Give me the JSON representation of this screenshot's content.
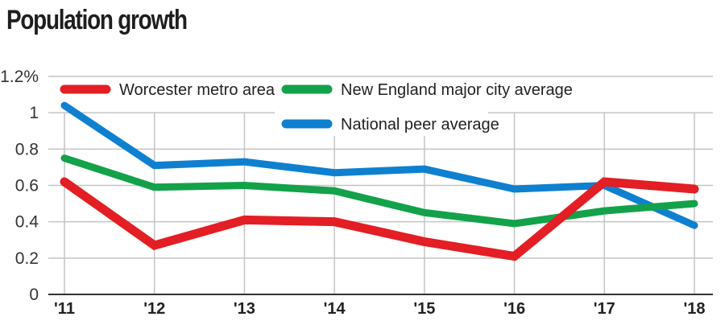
{
  "chart_data": {
    "type": "line",
    "title": "Population growth",
    "xlabel": "",
    "ylabel": "",
    "x": [
      "'11",
      "'12",
      "'13",
      "'14",
      "'15",
      "'16",
      "'17",
      "'18"
    ],
    "ylim": [
      0,
      1.2
    ],
    "yticks": [
      0,
      0.2,
      0.4,
      0.6,
      0.8,
      1,
      1.2
    ],
    "ytick_labels": [
      "0",
      "0.2",
      "0.4",
      "0.6",
      "0.8",
      "1",
      "1.2%"
    ],
    "grid": true,
    "legend_position": "top",
    "series": [
      {
        "name": "Worcester metro area",
        "color": "#e31e24",
        "values": [
          0.62,
          0.27,
          0.41,
          0.4,
          0.29,
          0.21,
          0.62,
          0.58
        ]
      },
      {
        "name": "New England major city average",
        "color": "#13a24a",
        "values": [
          0.75,
          0.59,
          0.6,
          0.57,
          0.45,
          0.39,
          0.46,
          0.5
        ]
      },
      {
        "name": "National peer average",
        "color": "#0f80cf",
        "values": [
          1.04,
          0.71,
          0.73,
          0.67,
          0.69,
          0.58,
          0.6,
          0.38
        ]
      }
    ]
  }
}
